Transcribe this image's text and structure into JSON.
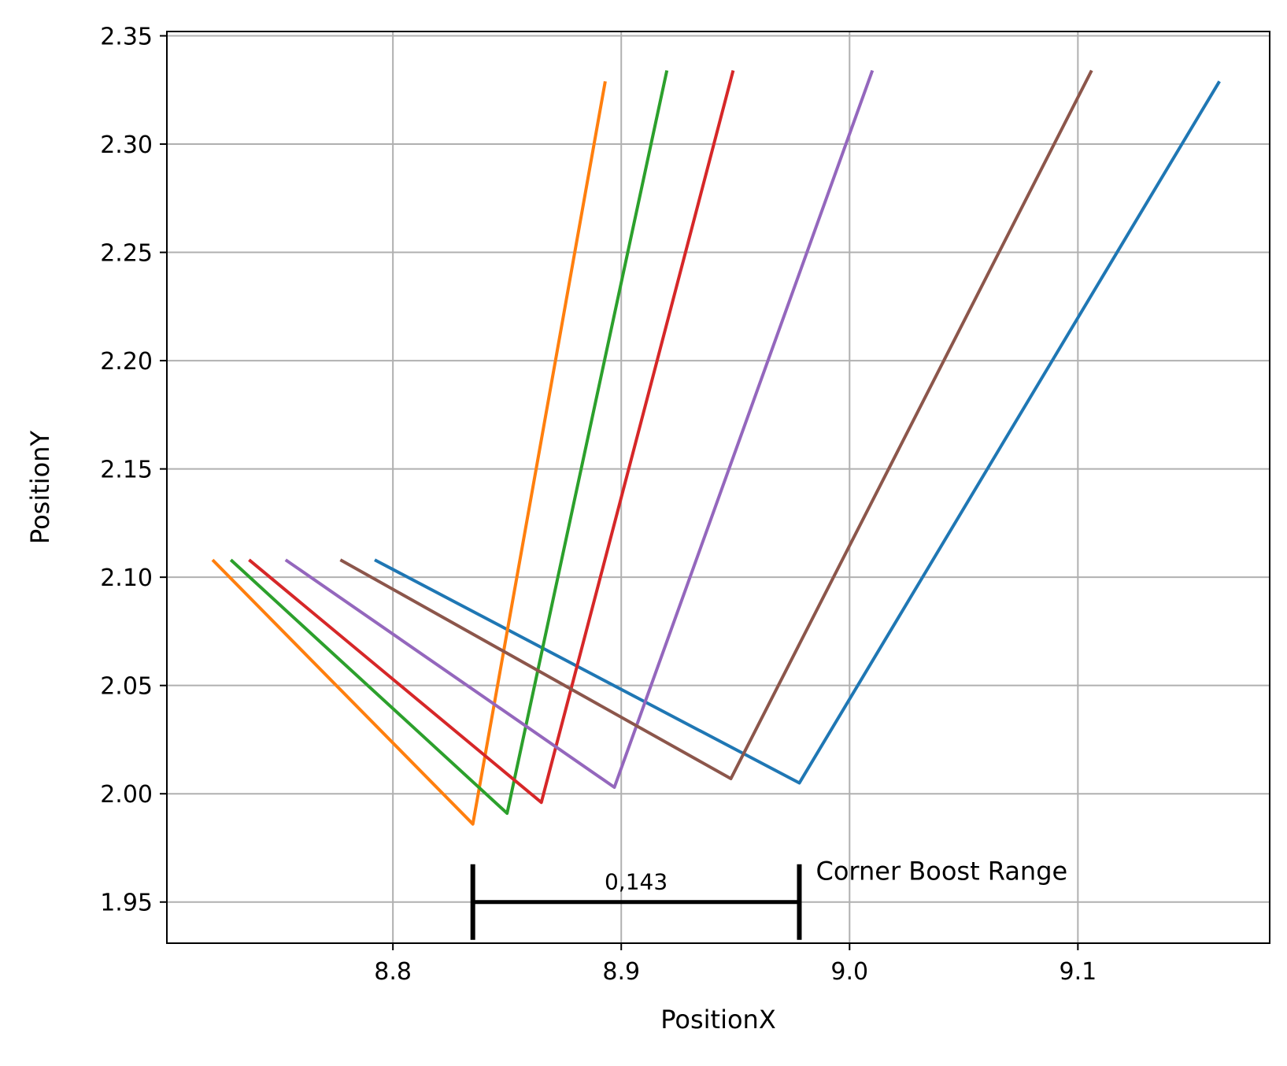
{
  "chart_data": {
    "type": "line",
    "title": "",
    "xlabel": "PositionX",
    "ylabel": "PositionY",
    "xlim": [
      8.701,
      9.184
    ],
    "ylim": [
      1.931,
      2.352
    ],
    "grid": true,
    "x_ticks": [
      8.8,
      8.9,
      9.0,
      9.1
    ],
    "x_tick_labels": [
      "8.8",
      "8.9",
      "9.0",
      "9.1"
    ],
    "y_ticks": [
      1.95,
      2.0,
      2.05,
      2.1,
      2.15,
      2.2,
      2.25,
      2.3,
      2.35
    ],
    "y_tick_labels": [
      "1.95",
      "2.00",
      "2.05",
      "2.10",
      "2.15",
      "2.20",
      "2.25",
      "2.30",
      "2.35"
    ],
    "series": [
      {
        "color": "#1f77b4",
        "points": [
          [
            8.792,
            2.108
          ],
          [
            8.978,
            2.005
          ],
          [
            9.162,
            2.329
          ]
        ]
      },
      {
        "color": "#ff7f0e",
        "points": [
          [
            8.721,
            2.108
          ],
          [
            8.835,
            1.986
          ],
          [
            8.893,
            2.329
          ]
        ]
      },
      {
        "color": "#2ca02c",
        "points": [
          [
            8.729,
            2.108
          ],
          [
            8.85,
            1.991
          ],
          [
            8.92,
            2.334
          ]
        ]
      },
      {
        "color": "#d62728",
        "points": [
          [
            8.737,
            2.108
          ],
          [
            8.865,
            1.996
          ],
          [
            8.949,
            2.334
          ]
        ]
      },
      {
        "color": "#9467bd",
        "points": [
          [
            8.753,
            2.108
          ],
          [
            8.897,
            2.003
          ],
          [
            9.01,
            2.334
          ]
        ]
      },
      {
        "color": "#8c564b",
        "points": [
          [
            8.777,
            2.108
          ],
          [
            8.948,
            2.007
          ],
          [
            9.106,
            2.334
          ]
        ]
      }
    ],
    "annotations": [
      {
        "type": "range-bracket",
        "x_start": 8.835,
        "x_end": 8.978,
        "y": 1.95,
        "value_label": "0,143",
        "text": "Corner Boost Range"
      }
    ]
  }
}
